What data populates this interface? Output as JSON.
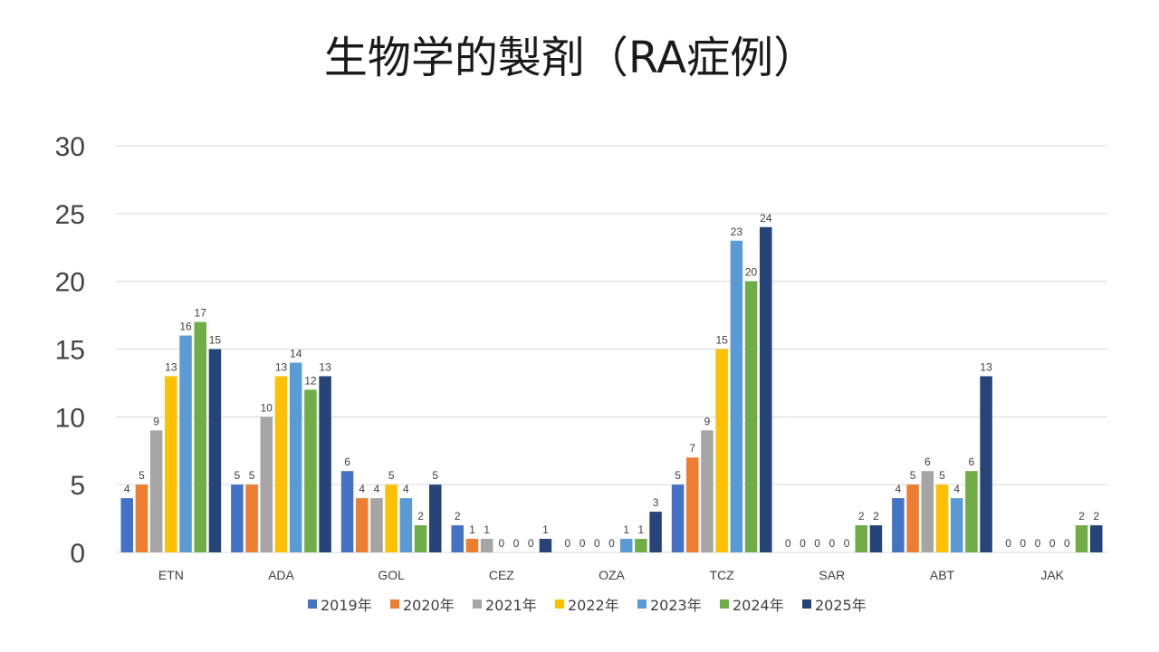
{
  "chart_data": {
    "type": "bar",
    "title": "生物学的製剤（RA症例）",
    "xlabel": "",
    "ylabel": "",
    "ylim": [
      0,
      30
    ],
    "yticks": [
      0,
      5,
      10,
      15,
      20,
      25,
      30
    ],
    "grid": true,
    "legend_position": "bottom",
    "categories": [
      "ETN",
      "ADA",
      "GOL",
      "CEZ",
      "OZA",
      "TCZ",
      "SAR",
      "ABT",
      "JAK"
    ],
    "series": [
      {
        "name": "2019年",
        "color": "#4472c4",
        "values": [
          4,
          5,
          6,
          2,
          0,
          5,
          0,
          4,
          0
        ]
      },
      {
        "name": "2020年",
        "color": "#ed7d31",
        "values": [
          5,
          5,
          4,
          1,
          0,
          7,
          0,
          5,
          0
        ]
      },
      {
        "name": "2021年",
        "color": "#a5a5a5",
        "values": [
          9,
          10,
          4,
          1,
          0,
          9,
          0,
          6,
          0
        ]
      },
      {
        "name": "2022年",
        "color": "#ffc000",
        "values": [
          13,
          13,
          5,
          0,
          0,
          15,
          0,
          5,
          0
        ]
      },
      {
        "name": "2023年",
        "color": "#5b9bd5",
        "values": [
          16,
          14,
          4,
          0,
          1,
          23,
          0,
          4,
          0
        ]
      },
      {
        "name": "2024年",
        "color": "#70ad47",
        "values": [
          17,
          12,
          2,
          0,
          1,
          20,
          2,
          6,
          2
        ]
      },
      {
        "name": "2025年",
        "color": "#264478",
        "values": [
          15,
          13,
          5,
          1,
          3,
          24,
          2,
          13,
          2
        ]
      }
    ]
  }
}
